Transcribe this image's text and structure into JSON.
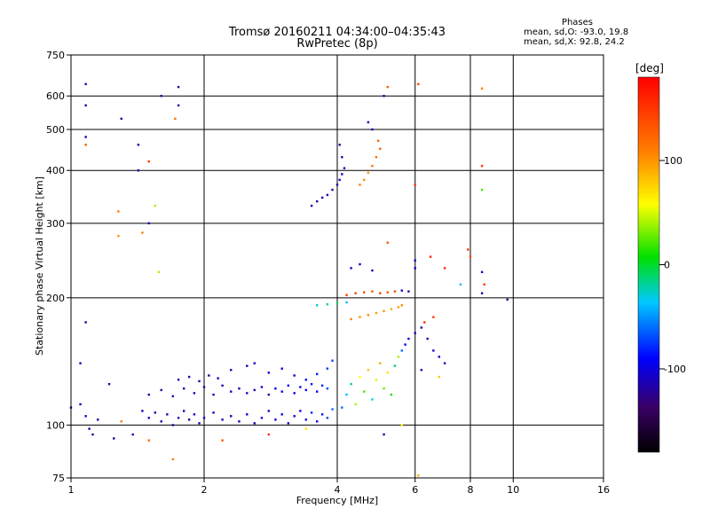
{
  "title_line1": "Tromsø 20160211 04:34:00–04:35:43",
  "title_line2": "RwPretec (8p)",
  "stats": {
    "header": "Phases",
    "line_o": "mean, sd,O: -93.0, 19.8",
    "line_x": "mean, sd,X:  92.8, 24.2"
  },
  "colorbar": {
    "unit_label": "[deg]",
    "ticks": [
      "100",
      "0",
      "-100"
    ],
    "tick_values": [
      100,
      0,
      -100
    ],
    "range": [
      -180,
      180
    ],
    "colormap": "rainbow"
  },
  "chart_data": {
    "type": "scatter",
    "xlabel": "Frequency [MHz]",
    "ylabel": "Stationary phase Virtual Height [km]",
    "x_scale": "log",
    "y_scale": "log",
    "xlim": [
      1,
      16
    ],
    "ylim": [
      75,
      750
    ],
    "x_ticks": [
      "1",
      "2",
      "4",
      "6",
      "8",
      "10",
      "16"
    ],
    "x_tick_values": [
      1,
      2,
      4,
      6,
      8,
      10,
      16
    ],
    "y_ticks": [
      "750",
      "600",
      "500",
      "400",
      "300",
      "200",
      "100",
      "75"
    ],
    "y_tick_values": [
      750,
      600,
      500,
      400,
      300,
      200,
      100,
      75
    ],
    "grid": true,
    "color_variable": "phase [deg]",
    "points": [
      [
        1.05,
        112,
        -120
      ],
      [
        1.08,
        105,
        -110
      ],
      [
        1.1,
        98,
        -115
      ],
      [
        1.12,
        95,
        -120
      ],
      [
        1.15,
        103,
        -118
      ],
      [
        1.25,
        93,
        -120
      ],
      [
        1.3,
        102,
        110
      ],
      [
        1.38,
        95,
        -112
      ],
      [
        1.45,
        108,
        -110
      ],
      [
        1.5,
        104,
        -105
      ],
      [
        1.55,
        107,
        -115
      ],
      [
        1.6,
        102,
        -120
      ],
      [
        1.65,
        106,
        -108
      ],
      [
        1.7,
        100,
        -115
      ],
      [
        1.75,
        104,
        -110
      ],
      [
        1.8,
        108,
        -112
      ],
      [
        1.85,
        103,
        -118
      ],
      [
        1.9,
        106,
        -100
      ],
      [
        1.95,
        101,
        -110
      ],
      [
        2.0,
        104,
        -108
      ],
      [
        2.1,
        107,
        -112
      ],
      [
        2.2,
        103,
        -105
      ],
      [
        2.3,
        105,
        -110
      ],
      [
        2.4,
        102,
        -115
      ],
      [
        2.5,
        106,
        -102
      ],
      [
        2.6,
        101,
        -110
      ],
      [
        2.7,
        104,
        -95
      ],
      [
        2.8,
        108,
        -105
      ],
      [
        2.9,
        103,
        -100
      ],
      [
        3.0,
        106,
        -90
      ],
      [
        3.1,
        101,
        -108
      ],
      [
        3.2,
        105,
        -112
      ],
      [
        3.3,
        108,
        -95
      ],
      [
        3.4,
        103,
        -100
      ],
      [
        3.5,
        107,
        -80
      ],
      [
        3.6,
        102,
        -90
      ],
      [
        3.7,
        106,
        -85
      ],
      [
        3.8,
        104,
        -70
      ],
      [
        3.9,
        109,
        -60
      ],
      [
        1.5,
        118,
        -115
      ],
      [
        1.6,
        121,
        -120
      ],
      [
        1.7,
        117,
        -110
      ],
      [
        1.8,
        122,
        -118
      ],
      [
        1.9,
        119,
        -112
      ],
      [
        2.0,
        123,
        -120
      ],
      [
        2.1,
        118,
        -108
      ],
      [
        2.2,
        124,
        -115
      ],
      [
        2.3,
        120,
        -110
      ],
      [
        2.4,
        122,
        -112
      ],
      [
        2.5,
        119,
        -105
      ],
      [
        2.6,
        121,
        -110
      ],
      [
        2.7,
        123,
        -100
      ],
      [
        2.8,
        118,
        -108
      ],
      [
        2.9,
        122,
        -95
      ],
      [
        3.0,
        120,
        -100
      ],
      [
        3.1,
        124,
        -90
      ],
      [
        3.2,
        119,
        -102
      ],
      [
        3.3,
        123,
        -95
      ],
      [
        3.4,
        121,
        -88
      ],
      [
        3.5,
        125,
        -85
      ],
      [
        3.6,
        120,
        -90
      ],
      [
        3.7,
        124,
        -80
      ],
      [
        3.8,
        122,
        -70
      ],
      [
        1.75,
        128,
        -115
      ],
      [
        1.85,
        130,
        -118
      ],
      [
        1.95,
        127,
        -112
      ],
      [
        2.05,
        131,
        -120
      ],
      [
        2.15,
        129,
        -110
      ],
      [
        2.3,
        135,
        -115
      ],
      [
        2.5,
        138,
        -110
      ],
      [
        2.6,
        140,
        -112
      ],
      [
        2.8,
        133,
        -100
      ],
      [
        3.0,
        136,
        -95
      ],
      [
        3.2,
        131,
        -105
      ],
      [
        3.4,
        128,
        -90
      ],
      [
        3.6,
        132,
        -85
      ],
      [
        3.8,
        136,
        -75
      ],
      [
        3.9,
        142,
        -70
      ],
      [
        4.1,
        110,
        -60
      ],
      [
        4.2,
        118,
        -40
      ],
      [
        4.3,
        125,
        -20
      ],
      [
        4.4,
        112,
        40
      ],
      [
        4.5,
        130,
        60
      ],
      [
        4.6,
        120,
        20
      ],
      [
        4.7,
        135,
        80
      ],
      [
        4.8,
        115,
        -30
      ],
      [
        4.9,
        128,
        50
      ],
      [
        5.0,
        140,
        90
      ],
      [
        5.1,
        122,
        30
      ],
      [
        5.2,
        133,
        70
      ],
      [
        5.3,
        118,
        10
      ],
      [
        5.4,
        138,
        -10
      ],
      [
        5.5,
        145,
        40
      ],
      [
        5.6,
        150,
        -60
      ],
      [
        5.7,
        155,
        -90
      ],
      [
        5.8,
        160,
        -100
      ],
      [
        6.0,
        165,
        -110
      ],
      [
        6.2,
        170,
        -115
      ],
      [
        6.4,
        160,
        -110
      ],
      [
        6.6,
        150,
        -105
      ],
      [
        6.8,
        145,
        -100
      ],
      [
        7.0,
        140,
        -108
      ],
      [
        4.3,
        178,
        110
      ],
      [
        4.5,
        180,
        100
      ],
      [
        4.7,
        182,
        105
      ],
      [
        4.9,
        184,
        95
      ],
      [
        5.1,
        186,
        100
      ],
      [
        5.3,
        188,
        92
      ],
      [
        5.5,
        190,
        98
      ],
      [
        5.6,
        192,
        105
      ],
      [
        4.2,
        203,
        150
      ],
      [
        4.4,
        205,
        145
      ],
      [
        4.6,
        206,
        140
      ],
      [
        4.8,
        207,
        130
      ],
      [
        5.0,
        205,
        145
      ],
      [
        5.2,
        206,
        135
      ],
      [
        5.4,
        207,
        140
      ],
      [
        5.6,
        208,
        -110
      ],
      [
        5.8,
        207,
        -115
      ],
      [
        3.6,
        192,
        -30
      ],
      [
        3.8,
        193,
        -20
      ],
      [
        4.0,
        194,
        -10
      ],
      [
        4.2,
        195,
        -40
      ],
      [
        3.5,
        330,
        -110
      ],
      [
        3.6,
        338,
        -115
      ],
      [
        3.7,
        345,
        -112
      ],
      [
        3.8,
        350,
        -108
      ],
      [
        3.9,
        360,
        -110
      ],
      [
        4.0,
        370,
        -115
      ],
      [
        4.05,
        380,
        -105
      ],
      [
        4.1,
        392,
        -112
      ],
      [
        4.15,
        405,
        -110
      ],
      [
        4.1,
        430,
        -120
      ],
      [
        4.05,
        460,
        -118
      ],
      [
        4.5,
        370,
        110
      ],
      [
        4.6,
        380,
        105
      ],
      [
        4.7,
        395,
        100
      ],
      [
        4.8,
        410,
        115
      ],
      [
        4.9,
        430,
        120
      ],
      [
        5.0,
        450,
        130
      ],
      [
        4.95,
        470,
        125
      ],
      [
        4.8,
        500,
        -110
      ],
      [
        4.7,
        520,
        -112
      ],
      [
        5.1,
        600,
        -118
      ],
      [
        5.2,
        630,
        130
      ],
      [
        1.08,
        640,
        -120
      ],
      [
        1.08,
        570,
        -118
      ],
      [
        1.08,
        480,
        -115
      ],
      [
        1.08,
        460,
        130
      ],
      [
        1.3,
        530,
        -120
      ],
      [
        1.42,
        460,
        -118
      ],
      [
        1.42,
        400,
        -110
      ],
      [
        1.5,
        420,
        150
      ],
      [
        1.6,
        600,
        -115
      ],
      [
        1.75,
        630,
        -120
      ],
      [
        1.75,
        570,
        -118
      ],
      [
        1.72,
        530,
        120
      ],
      [
        1.28,
        320,
        110
      ],
      [
        1.28,
        280,
        100
      ],
      [
        1.45,
        285,
        110
      ],
      [
        1.5,
        300,
        -110
      ],
      [
        1.55,
        330,
        40
      ],
      [
        1.58,
        230,
        40
      ],
      [
        1.08,
        175,
        -120
      ],
      [
        1.05,
        140,
        -115
      ],
      [
        1.22,
        125,
        -118
      ],
      [
        1.0,
        110,
        -110
      ],
      [
        6.1,
        640,
        140
      ],
      [
        8.5,
        625,
        110
      ],
      [
        8.5,
        410,
        150
      ],
      [
        8.5,
        360,
        20
      ],
      [
        6.0,
        370,
        150
      ],
      [
        6.5,
        250,
        160
      ],
      [
        7.0,
        235,
        160
      ],
      [
        7.6,
        215,
        -40
      ],
      [
        8.0,
        250,
        140
      ],
      [
        8.5,
        230,
        -110
      ],
      [
        8.6,
        215,
        150
      ],
      [
        8.5,
        205,
        -120
      ],
      [
        9.7,
        198,
        -120
      ],
      [
        7.9,
        260,
        150
      ],
      [
        6.0,
        245,
        -110
      ],
      [
        6.0,
        235,
        -105
      ],
      [
        5.2,
        270,
        130
      ],
      [
        4.8,
        232,
        -110
      ],
      [
        4.5,
        240,
        -115
      ],
      [
        4.3,
        235,
        -110
      ],
      [
        6.3,
        175,
        160
      ],
      [
        6.6,
        180,
        150
      ],
      [
        6.2,
        135,
        -110
      ],
      [
        6.8,
        130,
        80
      ],
      [
        5.1,
        95,
        -110
      ],
      [
        5.6,
        100,
        60
      ],
      [
        6.1,
        76,
        90
      ],
      [
        1.7,
        83,
        110
      ],
      [
        2.2,
        92,
        130
      ],
      [
        1.5,
        92,
        120
      ],
      [
        2.8,
        95,
        150
      ],
      [
        3.4,
        98,
        70
      ]
    ]
  }
}
